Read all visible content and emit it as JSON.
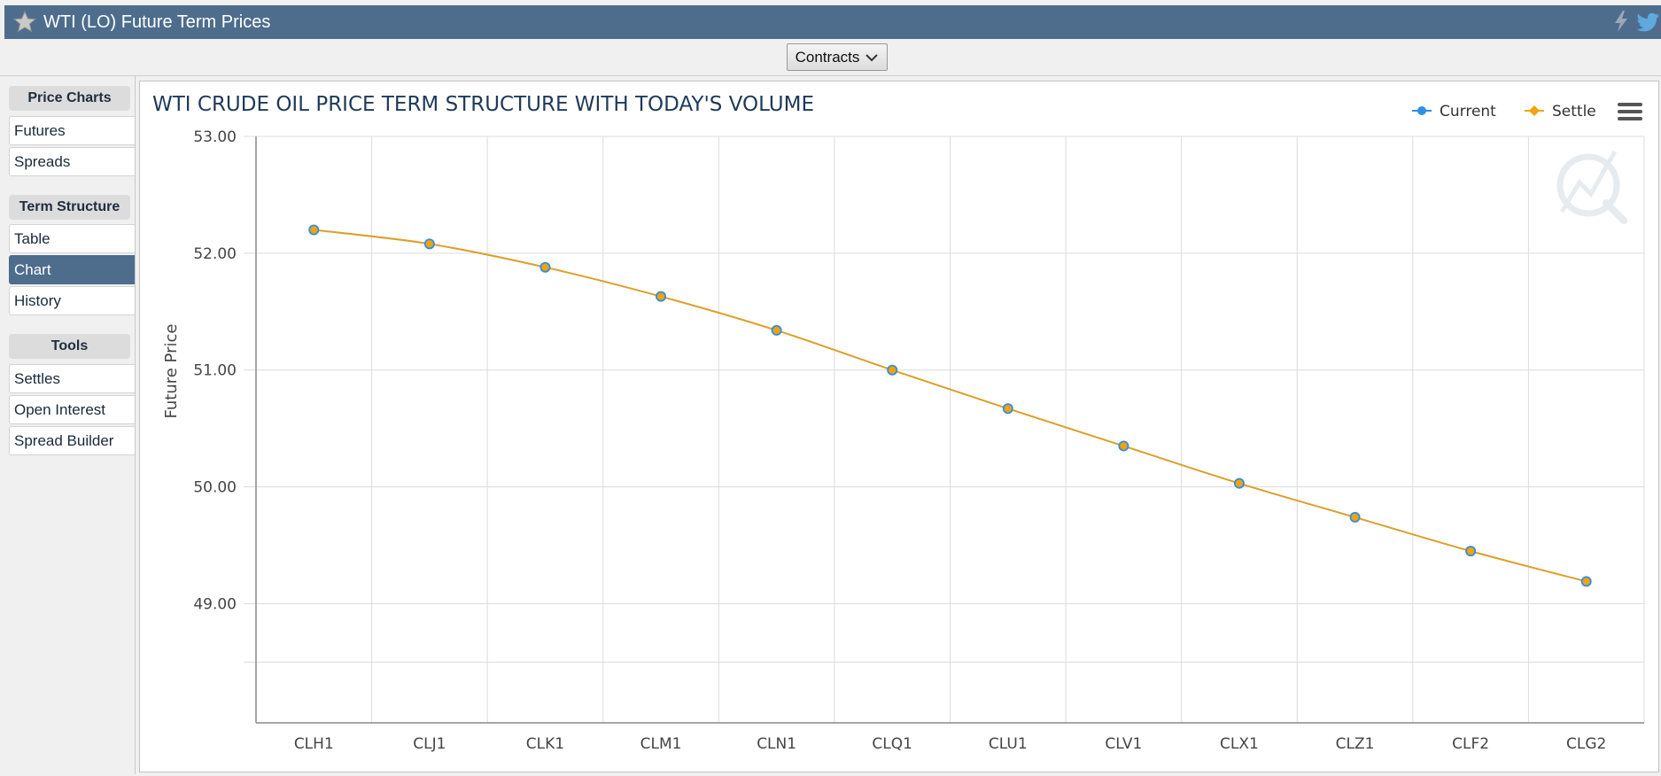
{
  "header": {
    "title": "WTI (LO) Future Term Prices"
  },
  "toolbar": {
    "contracts_label": "Contracts"
  },
  "sidebar": {
    "sections": [
      {
        "title": "Price Charts",
        "items": [
          "Futures",
          "Spreads"
        ]
      },
      {
        "title": "Term Structure",
        "items": [
          "Table",
          "Chart",
          "History"
        ]
      },
      {
        "title": "Tools",
        "items": [
          "Settles",
          "Open Interest",
          "Spread Builder"
        ]
      }
    ],
    "active": "Chart"
  },
  "colors": {
    "header": "#4e6d8d",
    "current": "#2f8ee8",
    "settle": "#f0a30a",
    "line": "#dd9f2a"
  },
  "chart_data": {
    "type": "line",
    "title": "WTI CRUDE OIL PRICE TERM STRUCTURE WITH TODAY'S VOLUME",
    "xlabel": "",
    "ylabel": "Future Price",
    "categories": [
      "CLH1",
      "CLJ1",
      "CLK1",
      "CLM1",
      "CLN1",
      "CLQ1",
      "CLU1",
      "CLV1",
      "CLX1",
      "CLZ1",
      "CLF2",
      "CLG2"
    ],
    "series": [
      {
        "name": "Current",
        "values": [
          52.2,
          52.08,
          51.88,
          51.63,
          51.34,
          51.0,
          50.67,
          50.35,
          50.03,
          49.74,
          49.45,
          49.19
        ]
      },
      {
        "name": "Settle",
        "values": [
          52.2,
          52.08,
          51.88,
          51.63,
          51.34,
          51.0,
          50.67,
          50.35,
          50.03,
          49.74,
          49.45,
          49.19
        ]
      }
    ],
    "yticks": [
      49.0,
      50.0,
      51.0,
      52.0,
      53.0
    ],
    "ytick_labels": [
      "49.00",
      "50.00",
      "51.00",
      "52.00",
      "53.00"
    ],
    "ylim": [
      47.98,
      53.0
    ],
    "grid": true,
    "legend": "top-right",
    "legend_labels": [
      "Current",
      "Settle"
    ]
  }
}
